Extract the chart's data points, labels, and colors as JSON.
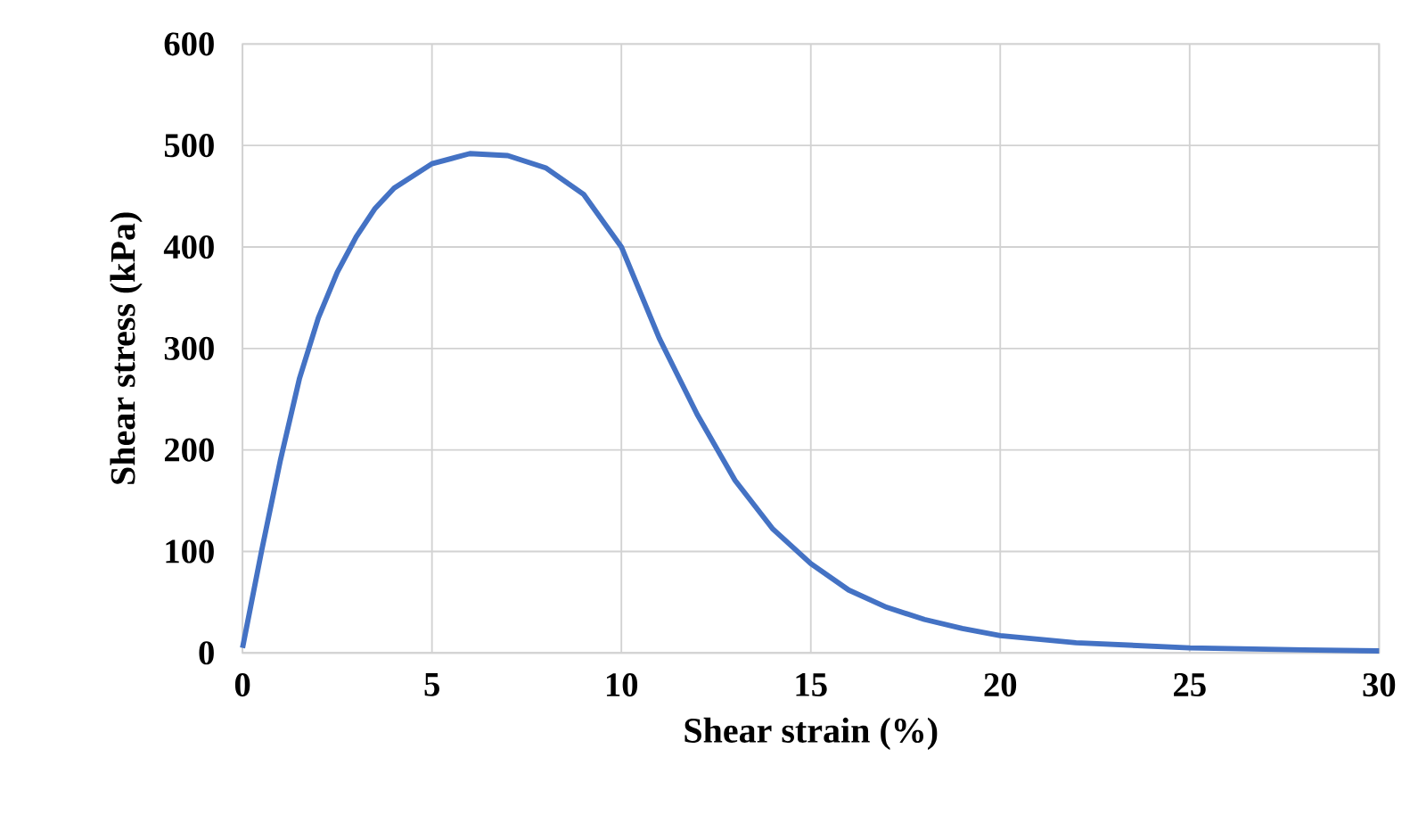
{
  "chart_data": {
    "type": "line",
    "xlabel": "Shear strain (%)",
    "ylabel": "Shear stress (kPa)",
    "x": [
      0,
      0.5,
      1,
      1.5,
      2,
      2.5,
      3,
      3.5,
      4,
      5,
      6,
      7,
      8,
      9,
      10,
      11,
      12,
      13,
      14,
      15,
      16,
      17,
      18,
      19,
      20,
      22,
      25,
      28,
      30
    ],
    "series": [
      {
        "color": "#4472c4",
        "values": [
          5,
          100,
          190,
          270,
          330,
          375,
          410,
          438,
          458,
          482,
          492,
          490,
          478,
          452,
          400,
          310,
          235,
          170,
          122,
          88,
          62,
          45,
          33,
          24,
          17,
          10,
          5,
          3,
          2
        ]
      }
    ],
    "xlim": [
      0,
      30
    ],
    "ylim": [
      0,
      600
    ],
    "xticks": [
      0,
      5,
      10,
      15,
      20,
      25,
      30
    ],
    "yticks": [
      0,
      100,
      200,
      300,
      400,
      500,
      600
    ],
    "grid": true,
    "marker": "none",
    "line_style": "solid"
  }
}
